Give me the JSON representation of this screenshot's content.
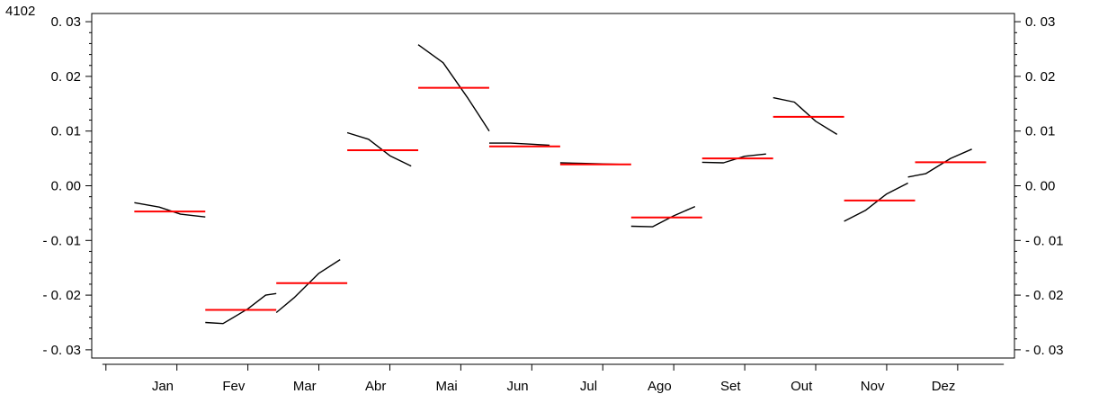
{
  "chart_data": {
    "type": "line",
    "corner_label": "4102",
    "categories": [
      "Jan",
      "Fev",
      "Mar",
      "Abr",
      "Mai",
      "Jun",
      "Jul",
      "Ago",
      "Set",
      "Out",
      "Nov",
      "Dez"
    ],
    "y_ticks": [
      "0. 03",
      "0. 02",
      "0. 01",
      "0. 00",
      "- 0. 01",
      "- 0. 02",
      "- 0. 03"
    ],
    "y_tick_values": [
      0.03,
      0.02,
      0.01,
      0.0,
      -0.01,
      -0.02,
      -0.03
    ],
    "ylim": [
      -0.0315,
      0.0315
    ],
    "xlim": [
      0,
      13
    ],
    "means": [
      -0.0047,
      -0.0227,
      -0.0178,
      0.0065,
      0.0179,
      0.0072,
      0.0039,
      -0.0058,
      0.005,
      0.0126,
      -0.0027,
      0.0043
    ],
    "subseries": [
      [
        [
          0.6,
          -0.0031
        ],
        [
          0.95,
          -0.0039
        ],
        [
          1.25,
          -0.0052
        ],
        [
          1.6,
          -0.0057
        ]
      ],
      [
        [
          1.6,
          -0.025
        ],
        [
          1.85,
          -0.0252
        ],
        [
          2.2,
          -0.0225
        ],
        [
          2.45,
          -0.02
        ],
        [
          2.6,
          -0.0197
        ]
      ],
      [
        [
          2.6,
          -0.0232
        ],
        [
          2.85,
          -0.0205
        ],
        [
          3.2,
          -0.016
        ],
        [
          3.5,
          -0.0135
        ]
      ],
      [
        [
          3.6,
          0.0097
        ],
        [
          3.9,
          0.0085
        ],
        [
          4.2,
          0.0055
        ],
        [
          4.5,
          0.0036
        ]
      ],
      [
        [
          4.6,
          0.0258
        ],
        [
          4.95,
          0.0225
        ],
        [
          5.3,
          0.016
        ],
        [
          5.6,
          0.01
        ]
      ],
      [
        [
          5.6,
          0.0078
        ],
        [
          5.9,
          0.0078
        ],
        [
          6.2,
          0.0076
        ],
        [
          6.45,
          0.0074
        ]
      ],
      [
        [
          6.6,
          0.0042
        ],
        [
          6.9,
          0.0041
        ],
        [
          7.2,
          0.004
        ],
        [
          7.5,
          0.0039
        ]
      ],
      [
        [
          7.6,
          -0.0074
        ],
        [
          7.9,
          -0.0075
        ],
        [
          8.2,
          -0.0055
        ],
        [
          8.5,
          -0.0038
        ]
      ],
      [
        [
          8.6,
          0.0043
        ],
        [
          8.9,
          0.0042
        ],
        [
          9.2,
          0.0054
        ],
        [
          9.5,
          0.0058
        ]
      ],
      [
        [
          9.6,
          0.0161
        ],
        [
          9.9,
          0.0153
        ],
        [
          10.2,
          0.0118
        ],
        [
          10.5,
          0.0094
        ]
      ],
      [
        [
          10.6,
          -0.0065
        ],
        [
          10.9,
          -0.0045
        ],
        [
          11.2,
          -0.0015
        ],
        [
          11.5,
          0.0005
        ]
      ],
      [
        [
          11.5,
          0.0016
        ],
        [
          11.75,
          0.0022
        ],
        [
          12.1,
          0.005
        ],
        [
          12.4,
          0.0067
        ]
      ]
    ],
    "mean_color": "#ff0000",
    "line_color": "#000000",
    "grid": false,
    "legend": "none"
  }
}
